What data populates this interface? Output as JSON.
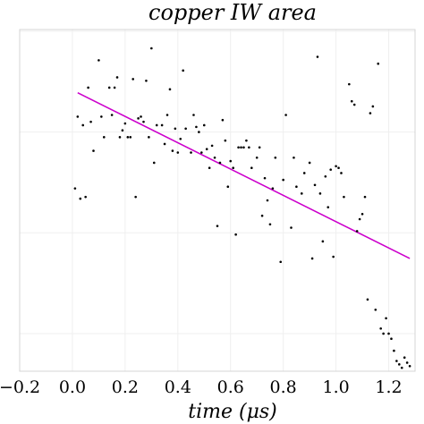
{
  "chart_data": {
    "type": "scatter",
    "title": "copper IW area",
    "xlabel": "time (μs)",
    "ylabel": "",
    "xlim": [
      -0.2,
      1.3
    ],
    "ylim": [
      0,
      10
    ],
    "xticks": [
      -0.2,
      0.0,
      0.2,
      0.4,
      0.6,
      0.8,
      1.0,
      1.2
    ],
    "xtick_labels": [
      "−0.2",
      "0.0",
      "0.2",
      "0.4",
      "0.6",
      "0.8",
      "1.0",
      "1.2"
    ],
    "yticks": [
      1.1,
      4.05,
      7.0,
      9.95
    ],
    "ytick_labels": [
      "",
      "",
      "",
      ""
    ],
    "grid": true,
    "fit_line": {
      "x": [
        0.02,
        1.28
      ],
      "y": [
        8.15,
        3.3
      ]
    },
    "points": [
      [
        0.01,
        5.35
      ],
      [
        0.02,
        7.45
      ],
      [
        0.03,
        5.05
      ],
      [
        0.04,
        7.2
      ],
      [
        0.05,
        5.1
      ],
      [
        0.06,
        8.3
      ],
      [
        0.07,
        7.3
      ],
      [
        0.08,
        6.45
      ],
      [
        0.1,
        9.1
      ],
      [
        0.11,
        7.45
      ],
      [
        0.12,
        6.85
      ],
      [
        0.14,
        8.3
      ],
      [
        0.15,
        7.5
      ],
      [
        0.16,
        8.3
      ],
      [
        0.17,
        8.6
      ],
      [
        0.18,
        6.85
      ],
      [
        0.19,
        7.05
      ],
      [
        0.2,
        7.25
      ],
      [
        0.21,
        6.85
      ],
      [
        0.22,
        6.85
      ],
      [
        0.23,
        8.55
      ],
      [
        0.24,
        5.1
      ],
      [
        0.25,
        7.4
      ],
      [
        0.26,
        7.45
      ],
      [
        0.27,
        7.3
      ],
      [
        0.28,
        8.5
      ],
      [
        0.29,
        6.85
      ],
      [
        0.3,
        9.45
      ],
      [
        0.31,
        6.1
      ],
      [
        0.32,
        7.2
      ],
      [
        0.34,
        7.2
      ],
      [
        0.35,
        6.65
      ],
      [
        0.36,
        7.5
      ],
      [
        0.37,
        8.25
      ],
      [
        0.38,
        6.45
      ],
      [
        0.39,
        7.1
      ],
      [
        0.4,
        6.4
      ],
      [
        0.41,
        6.8
      ],
      [
        0.42,
        8.8
      ],
      [
        0.43,
        7.1
      ],
      [
        0.45,
        6.4
      ],
      [
        0.46,
        7.5
      ],
      [
        0.47,
        7.15
      ],
      [
        0.48,
        7.0
      ],
      [
        0.49,
        6.4
      ],
      [
        0.5,
        7.2
      ],
      [
        0.51,
        6.5
      ],
      [
        0.52,
        5.95
      ],
      [
        0.53,
        6.6
      ],
      [
        0.54,
        6.25
      ],
      [
        0.55,
        4.25
      ],
      [
        0.56,
        6.1
      ],
      [
        0.57,
        7.35
      ],
      [
        0.58,
        6.75
      ],
      [
        0.59,
        5.4
      ],
      [
        0.6,
        6.15
      ],
      [
        0.61,
        5.95
      ],
      [
        0.62,
        4.0
      ],
      [
        0.63,
        6.55
      ],
      [
        0.64,
        6.55
      ],
      [
        0.65,
        6.55
      ],
      [
        0.66,
        6.75
      ],
      [
        0.67,
        6.55
      ],
      [
        0.68,
        5.95
      ],
      [
        0.7,
        6.25
      ],
      [
        0.71,
        6.55
      ],
      [
        0.72,
        4.55
      ],
      [
        0.73,
        5.65
      ],
      [
        0.74,
        5.0
      ],
      [
        0.75,
        4.3
      ],
      [
        0.76,
        5.35
      ],
      [
        0.77,
        6.25
      ],
      [
        0.79,
        3.2
      ],
      [
        0.8,
        5.6
      ],
      [
        0.81,
        7.5
      ],
      [
        0.83,
        4.2
      ],
      [
        0.84,
        6.25
      ],
      [
        0.85,
        5.4
      ],
      [
        0.87,
        5.2
      ],
      [
        0.88,
        5.8
      ],
      [
        0.9,
        6.1
      ],
      [
        0.91,
        3.3
      ],
      [
        0.92,
        5.45
      ],
      [
        0.93,
        9.2
      ],
      [
        0.94,
        5.2
      ],
      [
        0.95,
        3.8
      ],
      [
        0.96,
        5.7
      ],
      [
        0.97,
        4.8
      ],
      [
        0.98,
        5.9
      ],
      [
        0.99,
        3.35
      ],
      [
        1.0,
        6.0
      ],
      [
        1.01,
        5.95
      ],
      [
        1.02,
        5.8
      ],
      [
        1.03,
        5.1
      ],
      [
        1.05,
        8.4
      ],
      [
        1.06,
        7.9
      ],
      [
        1.07,
        7.8
      ],
      [
        1.08,
        4.1
      ],
      [
        1.09,
        4.45
      ],
      [
        1.1,
        4.6
      ],
      [
        1.11,
        5.1
      ],
      [
        1.12,
        2.1
      ],
      [
        1.13,
        7.55
      ],
      [
        1.14,
        7.75
      ],
      [
        1.15,
        1.8
      ],
      [
        1.16,
        9.0
      ],
      [
        1.17,
        1.25
      ],
      [
        1.18,
        1.1
      ],
      [
        1.19,
        1.55
      ],
      [
        1.2,
        1.1
      ],
      [
        1.21,
        0.95
      ],
      [
        1.22,
        0.6
      ],
      [
        1.23,
        0.3
      ],
      [
        1.24,
        0.2
      ],
      [
        1.25,
        0.1
      ],
      [
        1.26,
        0.4
      ],
      [
        1.27,
        0.25
      ],
      [
        1.28,
        0.15
      ]
    ]
  }
}
